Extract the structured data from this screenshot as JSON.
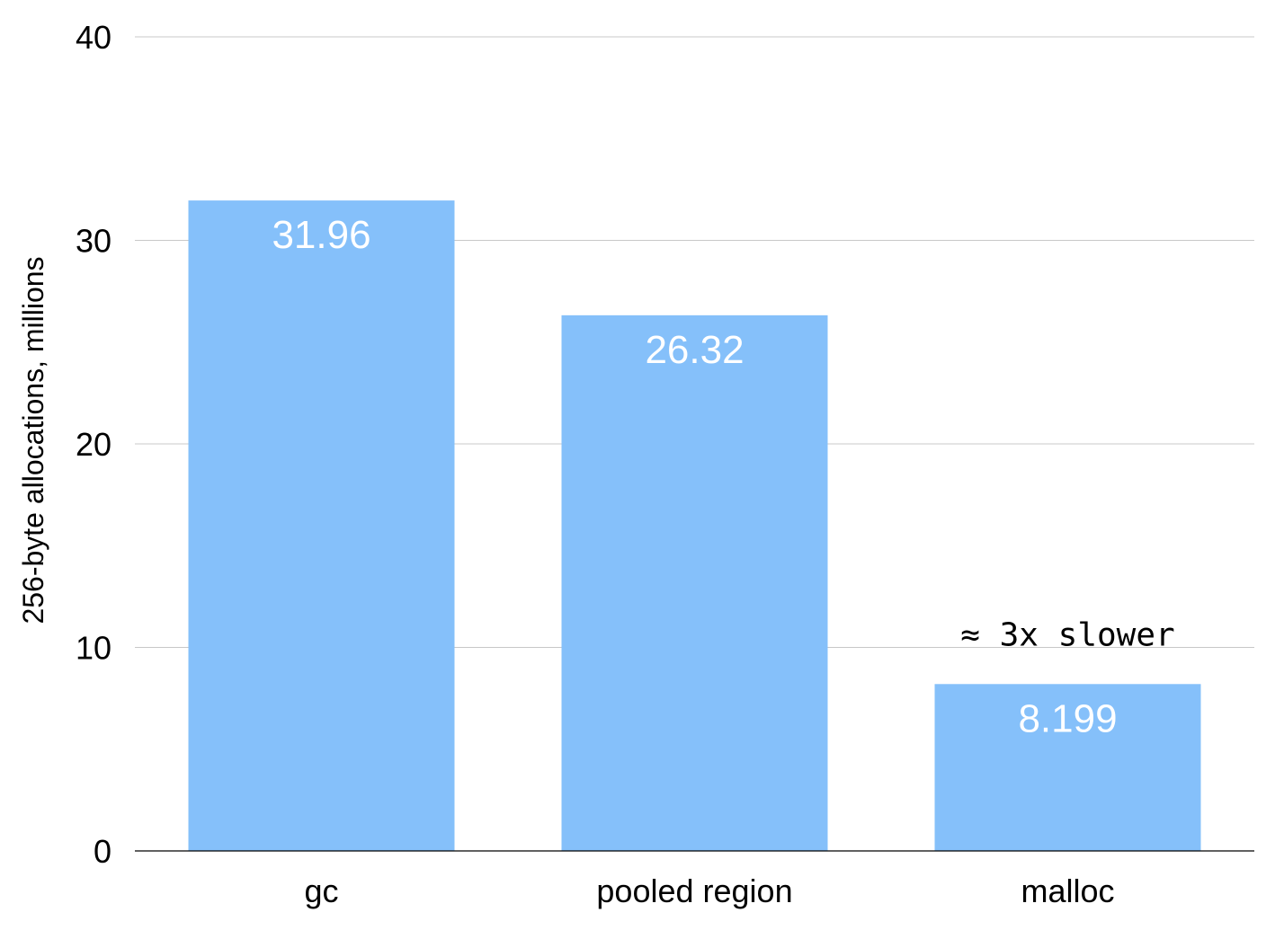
{
  "chart_data": {
    "type": "bar",
    "title": "",
    "xlabel": "",
    "ylabel": "256-byte allocations, millions",
    "categories": [
      "gc",
      "pooled region",
      "malloc"
    ],
    "values": [
      31.96,
      26.32,
      8.199
    ],
    "value_labels": [
      "31.96",
      "26.32",
      "8.199"
    ],
    "ylim": [
      0,
      40
    ],
    "yticks": [
      0,
      10,
      20,
      30,
      40
    ],
    "grid": true,
    "bar_color": "#85C0FA",
    "annotations": [
      {
        "text": "≈ 3x slower",
        "category": "malloc"
      }
    ]
  }
}
